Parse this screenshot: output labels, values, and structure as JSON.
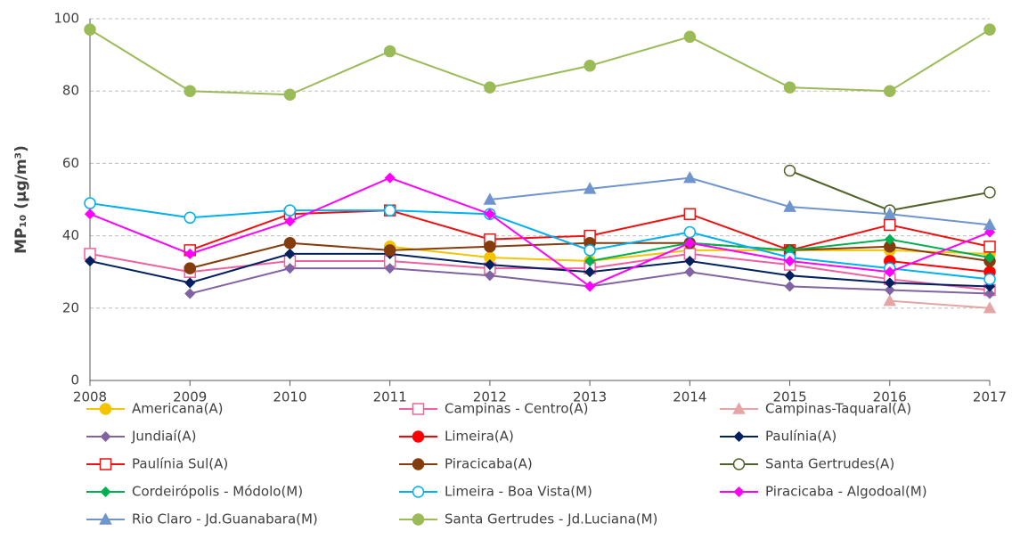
{
  "chart_data": {
    "type": "line",
    "y_label": "MP₁₀ (µg/m³)",
    "x": [
      2008,
      2009,
      2010,
      2011,
      2012,
      2013,
      2014,
      2015,
      2016,
      2017
    ],
    "xlim": [
      2008,
      2017
    ],
    "xticks": [
      2008,
      2009,
      2010,
      2011,
      2012,
      2013,
      2014,
      2015,
      2016,
      2017
    ],
    "ylim": [
      0,
      100
    ],
    "yticks": [
      0,
      20,
      40,
      60,
      80,
      100
    ],
    "grid": true,
    "legend": "bottom",
    "series": [
      {
        "name": "Americana(A)",
        "color": "#F5C400",
        "marker": "circle",
        "values": [
          null,
          null,
          null,
          37,
          34,
          33,
          36,
          36,
          36,
          35
        ]
      },
      {
        "name": "Campinas - Centro(A)",
        "color": "#F0609E",
        "marker": "square-open",
        "values": [
          35,
          30,
          33,
          33,
          31,
          31,
          35,
          32,
          28,
          25
        ]
      },
      {
        "name": "Campinas-Taquaral(A)",
        "color": "#E6A5A5",
        "marker": "triangle",
        "values": [
          null,
          null,
          null,
          null,
          null,
          null,
          null,
          null,
          22,
          20
        ]
      },
      {
        "name": "Jundiaí(A)",
        "color": "#8064A2",
        "marker": "diamond",
        "values": [
          null,
          24,
          31,
          31,
          29,
          26,
          30,
          26,
          25,
          24
        ]
      },
      {
        "name": "Limeira(A)",
        "color": "#FF0000",
        "marker": "circle",
        "values": [
          null,
          null,
          null,
          null,
          null,
          null,
          null,
          null,
          33,
          30
        ]
      },
      {
        "name": "Paulínia(A)",
        "color": "#002060",
        "marker": "diamond",
        "values": [
          33,
          27,
          35,
          35,
          32,
          30,
          33,
          29,
          27,
          26
        ]
      },
      {
        "name": "Paulínia Sul(A)",
        "color": "#EE1111",
        "marker": "square-open",
        "values": [
          null,
          36,
          46,
          47,
          39,
          40,
          46,
          36,
          43,
          37
        ]
      },
      {
        "name": "Piracicaba(A)",
        "color": "#843C0C",
        "marker": "circle",
        "values": [
          null,
          31,
          38,
          36,
          37,
          38,
          38,
          36,
          37,
          33
        ]
      },
      {
        "name": "Santa Gertrudes(A)",
        "color": "#4F6228",
        "marker": "circle-open",
        "values": [
          null,
          null,
          null,
          null,
          null,
          null,
          null,
          58,
          47,
          52
        ]
      },
      {
        "name": "Cordeirópolis - Módolo(M)",
        "color": "#00B050",
        "marker": "diamond",
        "values": [
          null,
          null,
          null,
          null,
          null,
          33,
          38,
          36,
          39,
          34
        ]
      },
      {
        "name": "Limeira - Boa Vista(M)",
        "color": "#00B0F0",
        "marker": "circle-open",
        "values": [
          49,
          45,
          47,
          47,
          46,
          36,
          41,
          34,
          31,
          28
        ]
      },
      {
        "name": "Piracicaba - Algodoal(M)",
        "color": "#FF00FF",
        "marker": "diamond",
        "values": [
          46,
          35,
          44,
          56,
          46,
          26,
          38,
          33,
          30,
          41
        ]
      },
      {
        "name": "Rio Claro - Jd.Guanabara(M)",
        "color": "#6F94CE",
        "marker": "triangle",
        "values": [
          null,
          null,
          null,
          null,
          50,
          53,
          56,
          48,
          46,
          43
        ]
      },
      {
        "name": "Santa Gertrudes - Jd.Luciana(M)",
        "color": "#9BBB59",
        "marker": "circle",
        "values": [
          97,
          80,
          79,
          91,
          81,
          87,
          95,
          81,
          80,
          97
        ]
      }
    ]
  }
}
